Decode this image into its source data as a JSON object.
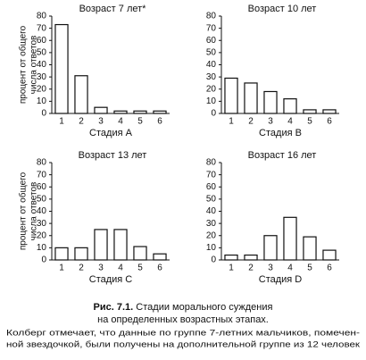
{
  "chart_data": [
    {
      "type": "bar",
      "title": "Возраст 7 лет*",
      "ylabel": [
        "процент от общего",
        "числа ответов"
      ],
      "xlabel": "Стадия  A",
      "categories": [
        "1",
        "2",
        "3",
        "4",
        "5",
        "6"
      ],
      "values": [
        73,
        31,
        5,
        2,
        2,
        2
      ],
      "color": "#ffffff",
      "ylim": [
        0,
        80
      ],
      "yticks": [
        0,
        10,
        20,
        30,
        40,
        50,
        60,
        70,
        80
      ]
    },
    {
      "type": "bar",
      "title": "Возраст 10 лет",
      "xlabel": "Стадия  B",
      "categories": [
        "1",
        "2",
        "3",
        "4",
        "5",
        "6"
      ],
      "values": [
        29,
        25,
        18,
        12,
        3,
        3
      ],
      "color": "#ffffff",
      "ylim": [
        0,
        80
      ],
      "yticks": [
        0,
        10,
        20,
        30,
        40,
        50,
        60,
        70,
        80
      ]
    },
    {
      "type": "bar",
      "title": "Возраст 13 лет",
      "ylabel": [
        "процент от общего",
        "числа ответов"
      ],
      "xlabel": "Стадия  C",
      "categories": [
        "1",
        "2",
        "3",
        "4",
        "5",
        "6"
      ],
      "values": [
        10,
        10,
        25,
        25,
        11,
        5
      ],
      "color": "#ffffff",
      "ylim": [
        0,
        80
      ],
      "yticks": [
        0,
        10,
        20,
        30,
        40,
        50,
        60,
        70,
        80
      ]
    },
    {
      "type": "bar",
      "title": "Возраст 16 лет",
      "xlabel": "Стадия  D",
      "categories": [
        "1",
        "2",
        "3",
        "4",
        "5",
        "6"
      ],
      "values": [
        4,
        4,
        20,
        35,
        19,
        8
      ],
      "color": "#ffffff",
      "ylim": [
        0,
        80
      ],
      "yticks": [
        0,
        10,
        20,
        30,
        40,
        50,
        60,
        70,
        80
      ]
    }
  ],
  "caption": {
    "label": "Рис. 7.1.",
    "title_lines": [
      "Стадии морального суждения",
      "на определенных возрастных этапах."
    ],
    "note_lines": [
      "Колберг отмечает, что данные по группе 7-летних мальчиков, помечен-",
      "ной звездочкой, были получены на дополнительной группе из 12 человек"
    ]
  }
}
